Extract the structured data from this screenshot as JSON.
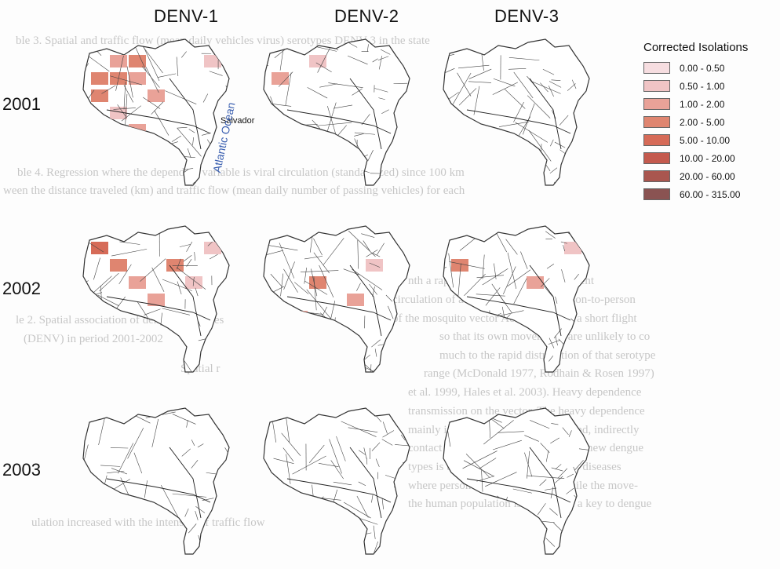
{
  "columns": [
    "DENV-1",
    "DENV-2",
    "DENV-3"
  ],
  "rows": [
    "2001",
    "2002",
    "2003"
  ],
  "legend": {
    "title": "Corrected Isolations",
    "classes": [
      {
        "label": "0.00 - 0.50",
        "color": "#f6dde0"
      },
      {
        "label": "0.50 - 1.00",
        "color": "#f0c4c5"
      },
      {
        "label": "1.00 - 2.00",
        "color": "#e9a298"
      },
      {
        "label": "2.00 - 5.00",
        "color": "#df8570"
      },
      {
        "label": "5.00 - 10.00",
        "color": "#d66b58"
      },
      {
        "label": "10.00 - 20.00",
        "color": "#c45a4e"
      },
      {
        "label": "20.00 - 60.00",
        "color": "#a9564f"
      },
      {
        "label": "60.00 - 315.00",
        "color": "#8a5352"
      }
    ]
  },
  "annotations": {
    "city": "Salvador",
    "ocean": "Atlantic Ocean"
  },
  "background_text": [
    "ble 3. Spatial and traffic flow (mean daily vehicles virus) serotypes DENV-3 in the state",
    "ble 4. Regression where the dependent variable is viral circulation (standardized) since 100 km",
    "ween the distance traveled (km) and traffic flow (mean daily number of passing vehicles) for each",
    "nth a rapid introduction and subsequent",
    "circulation of a new serotype with person-to-person",
    "of the mosquito vector Ae. aegypti has a short flight",
    "so that its own movements are unlikely to co",
    "much to the rapid distribution of that serotype",
    "range (McDonald 1977, Rodhain & Rosen 1997)",
    "et al. 1999, Hales et al. 2003). Heavy dependence",
    "transmission on the vector. The heavy dependence",
    "mainly in the natural environment and, indirectly",
    "contact that affects the distribution of new dengue",
    "types is therefore the introduction of diseases",
    "where person-to-person spread. While the move-",
    "the human population is often cited a key to dengue",
    "ulation increased with the intensity of traffic flow",
    "le 2. Spatial association of dengue serotypes",
    "(DENV) in period 2001-2002",
    "Spatial r"
  ],
  "panels": [
    [
      {
        "polys": [
          [
            0,
            1
          ],
          [
            0,
            2
          ],
          [
            1,
            0
          ],
          [
            1,
            1
          ],
          [
            1,
            2
          ],
          [
            2,
            0
          ],
          [
            2,
            3
          ],
          [
            3,
            1
          ],
          [
            4,
            2
          ],
          [
            0,
            6
          ]
        ],
        "levels": [
          2,
          3,
          3,
          3,
          2,
          3,
          2,
          1,
          2,
          1
        ]
      },
      {
        "polys": [
          [
            0,
            2
          ],
          [
            1,
            0
          ]
        ],
        "levels": [
          1,
          2
        ]
      },
      {
        "polys": [],
        "levels": []
      }
    ],
    [
      {
        "polys": [
          [
            0,
            0
          ],
          [
            1,
            1
          ],
          [
            0,
            6
          ],
          [
            2,
            2
          ],
          [
            1,
            4
          ],
          [
            3,
            3
          ],
          [
            2,
            5
          ]
        ],
        "levels": [
          4,
          3,
          1,
          2,
          3,
          2,
          1
        ]
      },
      {
        "polys": [
          [
            2,
            2
          ],
          [
            1,
            5
          ],
          [
            3,
            4
          ],
          [
            4,
            1
          ]
        ],
        "levels": [
          3,
          1,
          2,
          2
        ]
      },
      {
        "polys": [
          [
            1,
            0
          ],
          [
            2,
            4
          ],
          [
            0,
            6
          ]
        ],
        "levels": [
          3,
          2,
          1
        ]
      }
    ],
    [
      {
        "polys": [],
        "levels": []
      },
      {
        "polys": [],
        "levels": []
      },
      {
        "polys": [],
        "levels": []
      }
    ]
  ]
}
